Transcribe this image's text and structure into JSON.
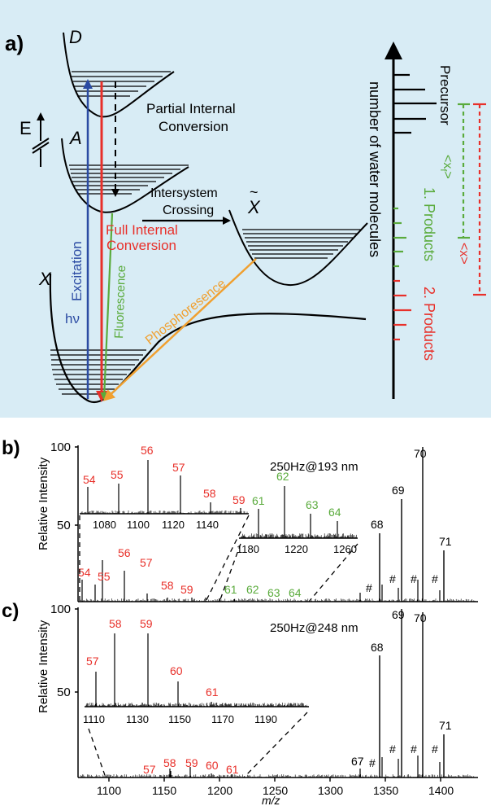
{
  "panel_a": {
    "label": "a)",
    "state_D": "D",
    "state_A": "A",
    "state_X": "X",
    "state_Xt": "X",
    "tilde": "~",
    "energy_label": "E",
    "partial_ic_1": "Partial Internal",
    "partial_ic_2": "Conversion",
    "isc_1": "Intersystem",
    "isc_2": "Crossing",
    "full_ic_1": "Full Internal",
    "full_ic_2": "Conversion",
    "excitation": "Excitation",
    "hv": "hν",
    "fluorescence": "Fluorescence",
    "phosphorescence": "Phosphoresence",
    "axis_label": "number of water molecules",
    "precursor": "Precursor",
    "products1": "1. Products",
    "products2": "2. Products",
    "xf": "<x",
    "xf_sub": "f",
    "xf_close": ">",
    "xavg": "<x>",
    "colors": {
      "blue": "#2b4ba3",
      "red": "#e8302a",
      "green": "#5aab3c",
      "orange": "#f0a030",
      "background": "#d8ecf5"
    }
  },
  "panel_b": {
    "label": "b)",
    "condition": "250Hz@193 nm",
    "ylabel": "Relative Intensity",
    "ytick_100": "100",
    "ytick_50": "50",
    "main_labels_red": [
      "54",
      "55",
      "56",
      "57",
      "58",
      "59"
    ],
    "main_labels_green": [
      "61",
      "62",
      "63",
      "64"
    ],
    "main_labels_black": [
      "68",
      "69",
      "70",
      "71"
    ],
    "hash": "#",
    "inset1_labels": [
      "54",
      "55",
      "56",
      "57",
      "58",
      "59"
    ],
    "inset1_ticks": [
      "1080",
      "1100",
      "1120",
      "1140"
    ],
    "inset2_labels": [
      "61",
      "62",
      "63",
      "64"
    ],
    "inset2_ticks": [
      "1180",
      "1220",
      "1260"
    ]
  },
  "panel_c": {
    "label": "c)",
    "condition": "250Hz@248 nm",
    "ylabel": "Relative Intensity",
    "ytick_100": "100",
    "ytick_50": "50",
    "main_labels_red": [
      "57",
      "58",
      "59",
      "60",
      "61"
    ],
    "main_labels_black": [
      "67",
      "68",
      "69",
      "70",
      "71"
    ],
    "hash": "#",
    "inset_labels": [
      "57",
      "58",
      "59",
      "60",
      "61"
    ],
    "inset_ticks": [
      "1110",
      "1130",
      "1150",
      "1170",
      "1190"
    ],
    "xticks": [
      "1100",
      "1150",
      "1200",
      "1250",
      "1300",
      "1350",
      "1400"
    ],
    "xlabel": "m/z"
  },
  "chart_data": [
    {
      "type": "bar",
      "title": "250Hz@193 nm",
      "ylabel": "Relative Intensity",
      "ylim": [
        0,
        100
      ],
      "categories": [
        "54",
        "55",
        "56",
        "57",
        "58",
        "59",
        "61",
        "62",
        "63",
        "64",
        "68",
        "69",
        "70",
        "71"
      ],
      "values": [
        14,
        12,
        26,
        20,
        5,
        2,
        3,
        3,
        2,
        1,
        45,
        66,
        100,
        33
      ]
    },
    {
      "type": "bar",
      "title": "250Hz@248 nm",
      "ylabel": "Relative Intensity",
      "xlabel": "m/z",
      "xlim": [
        1060,
        1400
      ],
      "ylim": [
        0,
        100
      ],
      "categories": [
        "57",
        "58",
        "59",
        "60",
        "61",
        "67",
        "68",
        "69",
        "70",
        "71"
      ],
      "values": [
        4,
        12,
        11,
        4,
        2,
        7,
        73,
        100,
        98,
        25
      ]
    }
  ]
}
